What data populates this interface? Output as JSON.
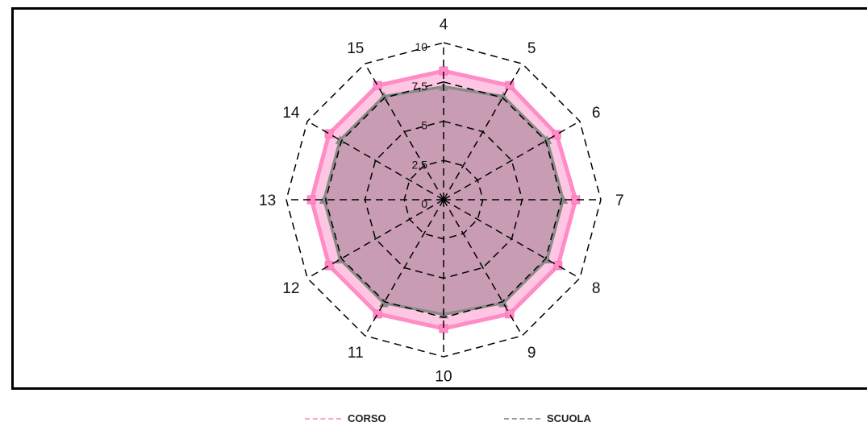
{
  "chart_data": {
    "type": "radar",
    "categories": [
      "4",
      "5",
      "6",
      "7",
      "8",
      "9",
      "10",
      "11",
      "12",
      "13",
      "14",
      "15"
    ],
    "rlim": [
      0,
      10
    ],
    "ticks": [
      "0",
      "2,5",
      "5",
      "7,5",
      "10"
    ],
    "tick_values": [
      0,
      2.5,
      5,
      7.5,
      10
    ],
    "grid": true,
    "legend_position": "bottom",
    "series": [
      {
        "name": "CORSO",
        "color": "#ff8cc6",
        "fill": "#ffb3d9",
        "values": [
          8.2,
          8.4,
          8.3,
          8.4,
          8.4,
          8.4,
          8.2,
          8.4,
          8.4,
          8.4,
          8.4,
          8.4
        ]
      },
      {
        "name": "SCUOLA",
        "color": "#8a8a8a",
        "fill": "#9a7a8a",
        "values": [
          7.2,
          7.6,
          7.6,
          7.6,
          7.6,
          7.6,
          7.3,
          7.6,
          7.6,
          7.6,
          7.6,
          7.6
        ]
      }
    ]
  }
}
